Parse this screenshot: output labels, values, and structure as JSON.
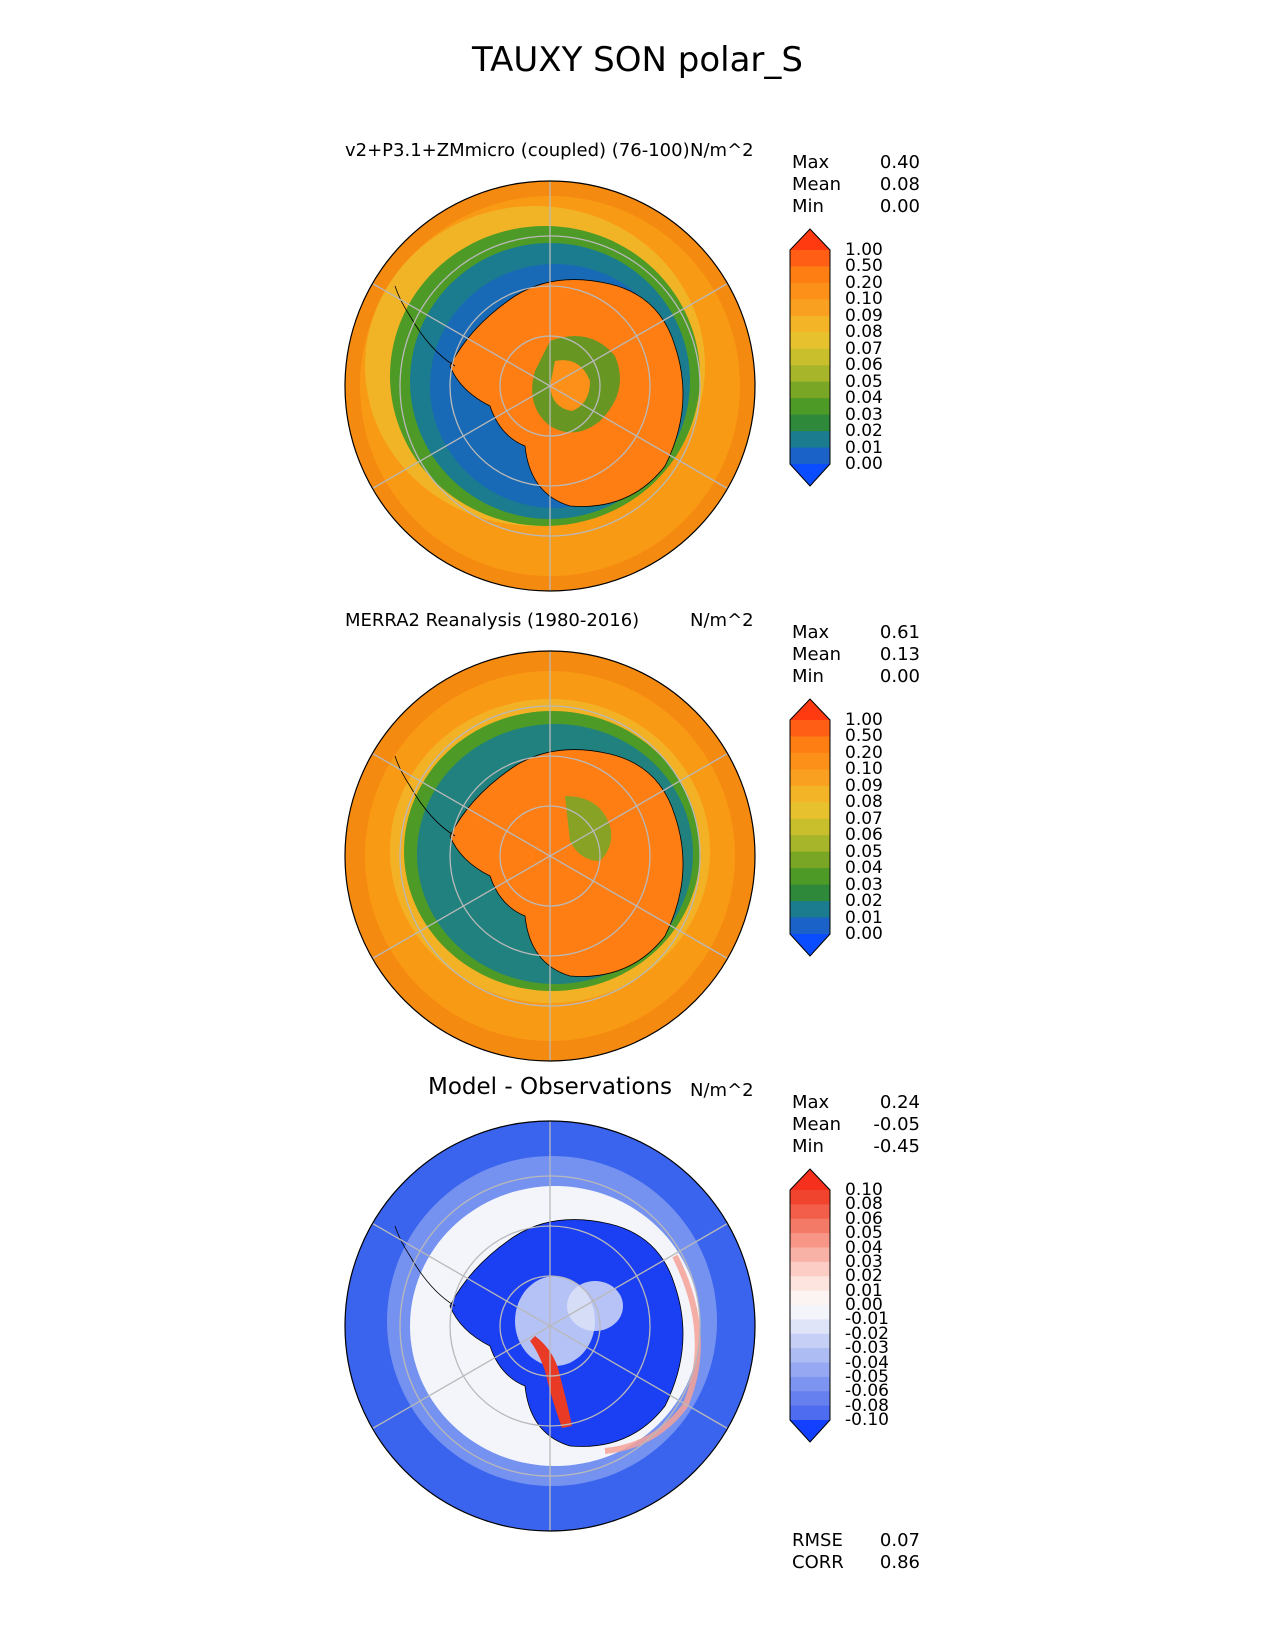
{
  "title": "TAUXY SON polar_S",
  "colors": {
    "ocean": "#f99a14",
    "outer_ring": "#f58a10",
    "green": "#3f9e3a",
    "teal": "#1a7c8e",
    "blue_dark": "#1a62c8",
    "land_orange": "#ff7e14",
    "grid": "#b9b9b9",
    "diff_blue": "#3a64ee",
    "diff_blue_deep": "#1b3ff2",
    "diff_white": "#f3f5fb",
    "diff_red": "#e83a24"
  },
  "panels": [
    {
      "id": "test",
      "title": "v2+P3.1+ZMmicro (coupled) (76-100)",
      "units": "N/m^2",
      "stats": [
        {
          "label": "Max",
          "value": "0.40"
        },
        {
          "label": "Mean",
          "value": "0.08"
        },
        {
          "label": "Min",
          "value": "0.00"
        }
      ],
      "colorbar": {
        "labels": [
          "1.00",
          "0.50",
          "0.20",
          "0.10",
          "0.09",
          "0.08",
          "0.07",
          "0.06",
          "0.05",
          "0.04",
          "0.03",
          "0.02",
          "0.01",
          "0.00"
        ],
        "colors": [
          "#ff5e14",
          "#ff7e14",
          "#fc9018",
          "#f9a020",
          "#f4b428",
          "#e7c22e",
          "#c9bf2c",
          "#a7b52a",
          "#7aa626",
          "#4d9a26",
          "#2e8a3a",
          "#1a7c8e",
          "#1a62c8"
        ],
        "top_color": "#ff3a10",
        "bottom_color": "#0a4cff"
      }
    },
    {
      "id": "reference",
      "title": "MERRA2 Reanalysis (1980-2016)",
      "units": "N/m^2",
      "stats": [
        {
          "label": "Max",
          "value": "0.61"
        },
        {
          "label": "Mean",
          "value": "0.13"
        },
        {
          "label": "Min",
          "value": "0.00"
        }
      ],
      "colorbar": {
        "labels": [
          "1.00",
          "0.50",
          "0.20",
          "0.10",
          "0.09",
          "0.08",
          "0.07",
          "0.06",
          "0.05",
          "0.04",
          "0.03",
          "0.02",
          "0.01",
          "0.00"
        ],
        "colors": [
          "#ff5e14",
          "#ff7e14",
          "#fc9018",
          "#f9a020",
          "#f4b428",
          "#e7c22e",
          "#c9bf2c",
          "#a7b52a",
          "#7aa626",
          "#4d9a26",
          "#2e8a3a",
          "#1a7c8e",
          "#1a62c8"
        ],
        "top_color": "#ff3a10",
        "bottom_color": "#0a4cff"
      }
    },
    {
      "id": "diff",
      "title": "Model - Observations",
      "units": "N/m^2",
      "stats": [
        {
          "label": "Max",
          "value": "0.24"
        },
        {
          "label": "Mean",
          "value": "-0.05"
        },
        {
          "label": "Min",
          "value": "-0.45"
        }
      ],
      "colorbar": {
        "labels": [
          "0.10",
          "0.08",
          "0.06",
          "0.05",
          "0.04",
          "0.03",
          "0.02",
          "0.01",
          "0.00",
          "-0.01",
          "-0.02",
          "-0.03",
          "-0.04",
          "-0.05",
          "-0.06",
          "-0.08",
          "-0.10"
        ],
        "colors": [
          "#f0442e",
          "#f25e4a",
          "#f47a68",
          "#f79686",
          "#f9b2a6",
          "#fbcdc4",
          "#fde4df",
          "#fbf4f3",
          "#f4f5fb",
          "#dfe4f8",
          "#c6d0f6",
          "#aebcf4",
          "#96a8f2",
          "#7e94f1",
          "#6680f0",
          "#4e6cf0"
        ],
        "top_color": "#f5301c",
        "bottom_color": "#1340ff"
      }
    }
  ],
  "metrics": [
    {
      "label": "RMSE",
      "value": "0.07"
    },
    {
      "label": "CORR",
      "value": "0.86"
    }
  ],
  "chart_data": {
    "type": "heatmap",
    "projection": "south polar stereographic",
    "variable": "TAUXY",
    "season": "SON",
    "region": "polar_S",
    "units": "N/m^2",
    "panels": [
      {
        "title": "v2+P3.1+ZMmicro (coupled) (76-100)",
        "max": 0.4,
        "mean": 0.08,
        "min": 0.0,
        "levels": [
          0.0,
          0.01,
          0.02,
          0.03,
          0.04,
          0.05,
          0.06,
          0.07,
          0.08,
          0.09,
          0.1,
          0.2,
          0.5,
          1.0
        ]
      },
      {
        "title": "MERRA2 Reanalysis (1980-2016)",
        "max": 0.61,
        "mean": 0.13,
        "min": 0.0,
        "levels": [
          0.0,
          0.01,
          0.02,
          0.03,
          0.04,
          0.05,
          0.06,
          0.07,
          0.08,
          0.09,
          0.1,
          0.2,
          0.5,
          1.0
        ]
      },
      {
        "title": "Model - Observations",
        "max": 0.24,
        "mean": -0.05,
        "min": -0.45,
        "levels": [
          -0.1,
          -0.08,
          -0.06,
          -0.05,
          -0.04,
          -0.03,
          -0.02,
          -0.01,
          0.0,
          0.01,
          0.02,
          0.03,
          0.04,
          0.05,
          0.06,
          0.08,
          0.1
        ],
        "rmse": 0.07,
        "corr": 0.86
      }
    ]
  }
}
